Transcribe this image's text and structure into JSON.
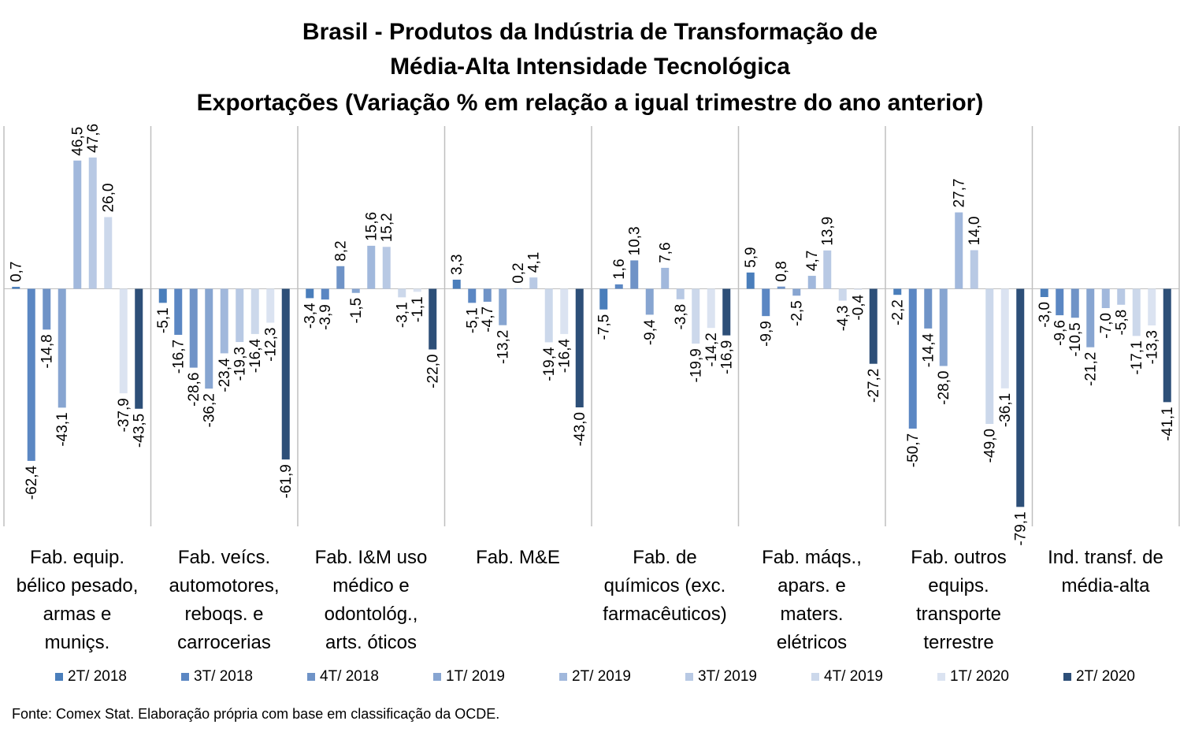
{
  "title": {
    "line1": "Brasil - Produtos da Indústria de Transformação de",
    "line2": "Média-Alta Intensidade Tecnológica",
    "line3": "Exportações (Variação % em relação a igual trimestre do ano anterior)"
  },
  "source": "Fonte: Comex Stat. Elaboração própria com base em classificação da OCDE.",
  "chart_data": {
    "type": "bar",
    "title": "Brasil - Produtos da Indústria de Transformação de Média-Alta Intensidade Tecnológica Exportações (Variação % em relação a igual trimestre do ano anterior)",
    "xlabel": "",
    "ylabel": "",
    "ylim": [
      -85,
      55
    ],
    "grid": false,
    "legend_position": "bottom",
    "categories": [
      "Fab. equip. bélico pesado, armas e muniçs.",
      "Fab. veícs. automotores, reboqs. e carrocerias",
      "Fab. I&M uso médico e odontológ., arts. óticos",
      "Fab. M&E",
      "Fab. de químicos (exc. farmacêuticos)",
      "Fab. máqs., apars. e maters. elétricos",
      "Fab. outros equips. transporte terrestre",
      "Ind. transf. de média-alta"
    ],
    "category_lines": [
      [
        "Fab. equip.",
        "bélico pesado,",
        "armas e",
        "muniçs."
      ],
      [
        "Fab. veícs.",
        "automotores,",
        "reboqs. e",
        "carrocerias"
      ],
      [
        "Fab. I&M uso",
        "médico e",
        "odontológ.,",
        "arts. óticos"
      ],
      [
        "Fab. M&E"
      ],
      [
        "Fab. de",
        "químicos (exc.",
        "farmacêuticos)"
      ],
      [
        "Fab. máqs.,",
        "apars. e",
        "maters.",
        "elétricos"
      ],
      [
        "Fab. outros",
        "equips.",
        "transporte",
        "terrestre"
      ],
      [
        "Ind. transf. de",
        "média-alta"
      ]
    ],
    "series": [
      {
        "name": "2T/ 2018",
        "color": "#4a7ebb",
        "values": [
          0.7,
          -5.1,
          -3.4,
          3.3,
          -7.5,
          5.9,
          -2.2,
          -3.0
        ]
      },
      {
        "name": "3T/ 2018",
        "color": "#5b87c3",
        "values": [
          -62.4,
          -16.7,
          -3.9,
          -5.1,
          1.6,
          -9.9,
          -50.7,
          -9.6
        ]
      },
      {
        "name": "4T/ 2018",
        "color": "#6f93c7",
        "values": [
          -14.8,
          -28.6,
          8.2,
          -4.7,
          10.3,
          0.8,
          -14.4,
          -10.5
        ]
      },
      {
        "name": "1T/ 2019",
        "color": "#87a5d1",
        "values": [
          -43.1,
          -36.2,
          -1.5,
          -13.2,
          -9.4,
          -2.5,
          -28.0,
          -21.2
        ]
      },
      {
        "name": "2T/ 2019",
        "color": "#a1b8dc",
        "values": [
          46.5,
          -23.4,
          15.6,
          0.2,
          7.6,
          4.7,
          27.7,
          -7.0
        ]
      },
      {
        "name": "3T/ 2019",
        "color": "#b8c9e4",
        "values": [
          47.6,
          -19.3,
          15.2,
          4.1,
          -3.8,
          13.9,
          14.0,
          -5.8
        ]
      },
      {
        "name": "4T/ 2019",
        "color": "#ccd8eb",
        "values": [
          26.0,
          -16.4,
          -3.1,
          -19.4,
          -19.9,
          -4.3,
          -49.0,
          -17.1
        ]
      },
      {
        "name": "1T/ 2020",
        "color": "#dbe3f1",
        "values": [
          -37.9,
          -12.3,
          -1.1,
          -16.4,
          -14.2,
          -0.4,
          -36.1,
          -13.3
        ]
      },
      {
        "name": "2T/ 2020",
        "color": "#2d4f78",
        "values": [
          -43.5,
          -61.9,
          -22.0,
          -43.0,
          -16.9,
          -27.2,
          -79.1,
          -41.1
        ]
      }
    ]
  }
}
